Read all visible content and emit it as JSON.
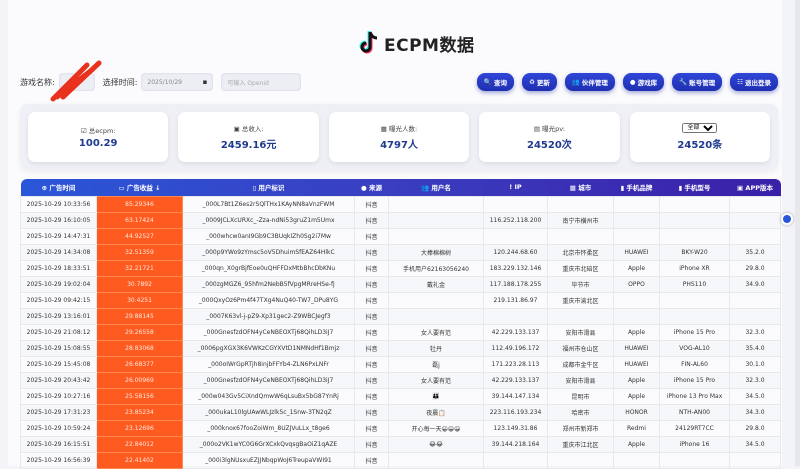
{
  "header": {
    "title": "ECPM数据"
  },
  "filters": {
    "game_label": "游戏名称:",
    "date_label": "选择时间:",
    "date_value": "2025/10/29",
    "openid_placeholder": "可输入 Openid"
  },
  "buttons": [
    {
      "label": "查询",
      "icon": "search-icon"
    },
    {
      "label": "更新",
      "icon": "refresh-icon"
    },
    {
      "label": "伙伴管理",
      "icon": "partner-icon"
    },
    {
      "label": "游戏库",
      "icon": "game-icon"
    },
    {
      "label": "账号管理",
      "icon": "account-icon"
    },
    {
      "label": "退出登录",
      "icon": "logout-icon"
    }
  ],
  "stats": [
    {
      "label": "总ecpm:",
      "value": "100.29"
    },
    {
      "label": "总收入:",
      "value": "2459.16元"
    },
    {
      "label": "曝光人数:",
      "value": "4797人"
    },
    {
      "label": "曝光pv:",
      "value": "24520次"
    },
    {
      "select": "全部",
      "value": "24520条"
    }
  ],
  "table": {
    "columns": [
      "广告时间",
      "广告收益 ↓",
      "用户标识",
      "来源",
      "用户名",
      "IP",
      "城市",
      "手机品牌",
      "手机型号",
      "APP版本"
    ],
    "rows": [
      [
        "2025-10-29 10:33:56",
        "85.29346",
        "_000L7Bt1Z6es2rSQlTHx1KAyNN8aVnzFWM",
        "抖音",
        "",
        "",
        "",
        "",
        "",
        ""
      ],
      [
        "2025-10-29 16:10:05",
        "63.17424",
        "_0009JCLXcURXc_-Zza-ndNi53gruZ1m5Umx",
        "抖音",
        "",
        "116.252.118.200",
        "南宁市横州市",
        "",
        "",
        ""
      ],
      [
        "2025-10-29 14:47:31",
        "44.92527",
        "_000whcw0anI9Gb9C3BUqkIZh0Sg2i7Mw",
        "抖音",
        "",
        "",
        "",
        "",
        "",
        ""
      ],
      [
        "2025-10-29 14:34:08",
        "32.51359",
        "_000p9YWo9zYmsc5oV5DhuimSfEAZ64HlkC",
        "抖音",
        "大棒棉棉树",
        "120.244.68.60",
        "北京市怀柔区",
        "HUAWEI",
        "BKY-W20",
        "35.2.0"
      ],
      [
        "2025-10-29 18:33:51",
        "32.21721",
        "_000qn_X0grBjfEoe0uQHFFDxMtbBhcDbKNu",
        "抖音",
        "手机用户62163056240",
        "183.229.132.146",
        "重庆市北碚区",
        "Apple",
        "iPhone XR",
        "29.8.0"
      ],
      [
        "2025-10-29 19:02:04",
        "30.7892",
        "_000zgMGZ6_95hfm2NebB5fVpgMRreHSe-fj",
        "抖音",
        "戴礼金",
        "117.188.178.255",
        "毕节市",
        "OPPO",
        "PHS110",
        "34.9.0"
      ],
      [
        "2025-10-29 09:42:15",
        "30.4251",
        "_000QxyOz6Pm4f47TXg4NuQ40-TW7_DPu8YG",
        "抖音",
        "",
        "219.131.86.97",
        "重庆市渝北区",
        "",
        "",
        ""
      ],
      [
        "2025-10-29 13:16:01",
        "29.88145",
        "_0007K63vl-j-pZ9-Xp31gec2-Z9WBCJegf3",
        "抖音",
        "",
        "",
        "",
        "",
        "",
        ""
      ],
      [
        "2025-10-29 21:08:12",
        "29.26558",
        "_000GnesfzdOFN4yCeNBEOXTj68QihLD3iJ7",
        "抖音",
        "女人要有范",
        "42.229.133.137",
        "安阳市滑县",
        "Apple",
        "iPhone 15 Pro",
        "32.3.0"
      ],
      [
        "2025-10-29 15:08:55",
        "28.83068",
        "_0006pgXGX3K6VWKzCGYXVtD1NMNdHf1Bmjz",
        "抖音",
        "牡丹",
        "112.49.196.172",
        "福州市仓山区",
        "HUAWEI",
        "VOG-AL10",
        "35.4.0"
      ],
      [
        "2025-10-29 15:45:08",
        "26.68377",
        "_000oIWrGpRTjh8injbFFYb4-ZLN6PxLNFr",
        "抖音",
        "磊j",
        "171.223.28.113",
        "成都市金牛区",
        "HUAWEI",
        "FIN-AL60",
        "30.1.0"
      ],
      [
        "2025-10-29 20:43:42",
        "26.00969",
        "_000GnesfzdOFN4yCeNBEOXTj68QihLD3iJ7",
        "抖音",
        "女人要有范",
        "42.229.133.137",
        "安阳市滑县",
        "Apple",
        "iPhone 15 Pro",
        "32.3.0"
      ],
      [
        "2025-10-29 10:27:16",
        "25.58156",
        "_000w043Gv5CiXndQmwW6qLsuBx5bG87YnRj",
        "抖音",
        "👪",
        "39.144.147.134",
        "昆明市",
        "Apple",
        "iPhone 13 Pro Max",
        "34.5.0"
      ],
      [
        "2025-10-29 17:31:23",
        "23.85234",
        "_000ukaL10lgUAwWLJzlk5c_1Snw-3TN2qZ",
        "抖音",
        "夜晨📋",
        "223.116.193.234",
        "哈密市",
        "HONOR",
        "NTH-AN00",
        "34.3.0"
      ],
      [
        "2025-10-29 10:59:24",
        "23.12696",
        "_000knox67fooZoiWm_8UZJVuLLx_t8ge6",
        "抖音",
        "开心每一天😀😀😀",
        "123.149.31.86",
        "郑州市新郑市",
        "Redmi",
        "24129RT7CC",
        "29.8.0"
      ],
      [
        "2025-10-29 16:15:51",
        "22.84012",
        "_000o2VK1wYC0G6GrXCxkQvqsgBaOiZ1qAZE",
        "抖音",
        "😂😂",
        "39.144.218.164",
        "重庆市江北区",
        "Apple",
        "iPhone 16",
        "34.5.0"
      ],
      [
        "2025-10-29 16:56:39",
        "22.41402",
        "_000i3lgNUsxuEZJJNbqpWoJ6TreupaVWI91",
        "抖音",
        "",
        "",
        "",
        "",
        "",
        ""
      ]
    ]
  },
  "colors": {
    "primary": "#2a3fd0",
    "revenue_cell": "#ff5a1f",
    "value_text": "#1f3a8f"
  }
}
